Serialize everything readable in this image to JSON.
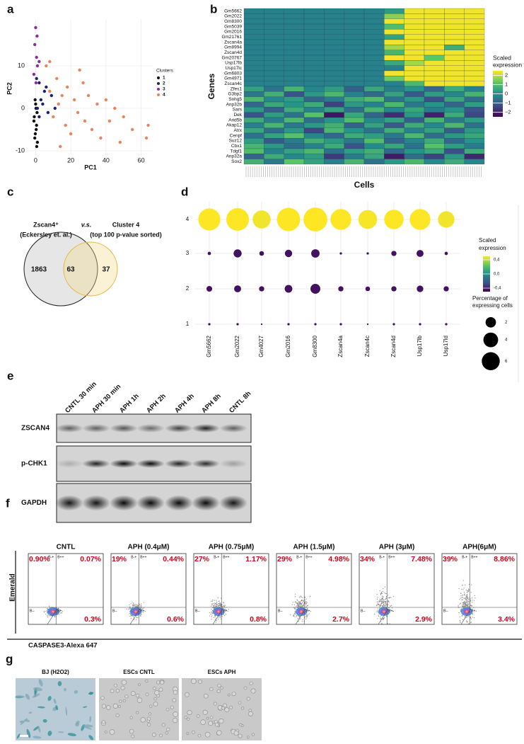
{
  "panel_labels": [
    "a",
    "b",
    "c",
    "d",
    "e",
    "f",
    "g"
  ],
  "chart_data": [
    {
      "type": "scatter",
      "xlabel": "PC1",
      "ylabel": "PC2",
      "legend_title": "Clusters",
      "xlim": [
        -5,
        67
      ],
      "ylim": [
        -11,
        21
      ],
      "xticks": [
        0,
        20,
        40,
        60
      ],
      "yticks": [
        -10,
        0,
        10
      ],
      "grid": true,
      "series": [
        {
          "name": "1",
          "color": "#111111",
          "x": [
            -0.5,
            0.3,
            -1,
            0.8,
            0,
            -0.2,
            0.5,
            -0.8,
            0.2,
            1,
            -0.3,
            0.6
          ],
          "values": [
            -7,
            -5,
            -3,
            -1,
            1,
            -6,
            -4,
            -2,
            0,
            -8,
            2,
            -9
          ]
        },
        {
          "name": "2",
          "color": "#1b1f78",
          "x": [
            1,
            3,
            5,
            2,
            7,
            4,
            9,
            0.5,
            6,
            11,
            2
          ],
          "values": [
            0,
            2,
            4,
            6,
            -1,
            1,
            3,
            7,
            5,
            0,
            -2
          ]
        },
        {
          "name": "3",
          "color": "#8e2c9e",
          "x": [
            0,
            -0.5,
            0.5,
            1,
            -1,
            0.2,
            2,
            0.8
          ],
          "values": [
            19,
            15,
            12,
            10,
            8,
            6,
            11,
            17
          ]
        },
        {
          "name": "4",
          "color": "#e9845c",
          "x": [
            6,
            8,
            10,
            12,
            13,
            15,
            17,
            18,
            20,
            22,
            24,
            25,
            28,
            30,
            32,
            35,
            37,
            40,
            42,
            45,
            48,
            50,
            55,
            63,
            64,
            8,
            14,
            27
          ],
          "values": [
            10,
            4,
            -2,
            7,
            1,
            3,
            -4,
            5,
            -6,
            2,
            -1,
            9,
            -3,
            3,
            -5,
            1,
            -7,
            2,
            -3,
            0,
            -8,
            -2,
            -5,
            -7,
            -4,
            11,
            -9,
            6
          ]
        }
      ]
    },
    {
      "type": "heatmap",
      "ylabel": "Genes",
      "xlabel": "Cells",
      "legend_title": [
        "Scaled",
        "expression"
      ],
      "rows": [
        "Gm5662",
        "Gm2022",
        "Gm8300",
        "Gm5039",
        "Gm2016",
        "Gm21761",
        "Zscan4a",
        "Gm8994",
        "Zscan4d",
        "Gm20767",
        "Usp17lb",
        "Usp17lc",
        "Gm6803",
        "Gm4971",
        "Zscan4c",
        "Zfes1",
        "G3bp2",
        "Snhg5",
        "Anp32b",
        "Sars",
        "Dek",
        "Arid5b",
        "Akap12",
        "Atrx",
        "Cenpf",
        "Suz12",
        "Cbx1",
        "Tdgf1",
        "Anp32a",
        "Sox2"
      ],
      "clim": [
        -2.5,
        2.5
      ],
      "cticks": [
        2,
        1,
        0,
        {
          "value": -1,
          "label": "−1"
        },
        {
          "value": -2,
          "label": "−2"
        }
      ],
      "values": [
        [
          -0.3,
          -0.3,
          -0.3,
          -0.3,
          -0.3,
          -0.3,
          -0.3,
          0.2,
          2.4,
          2.4,
          2.4,
          2.4
        ],
        [
          -0.3,
          -0.3,
          -0.3,
          -0.3,
          -0.3,
          -0.3,
          -0.3,
          1.6,
          2.4,
          2.4,
          2.4,
          2.4
        ],
        [
          -0.3,
          -0.3,
          -0.3,
          -0.3,
          -0.3,
          -0.3,
          -0.3,
          2.4,
          2.4,
          2.4,
          2.4,
          2.4
        ],
        [
          -0.3,
          -0.3,
          -0.3,
          -0.3,
          -0.3,
          -0.3,
          -0.3,
          1.0,
          2.4,
          2.4,
          2.4,
          2.4
        ],
        [
          -0.3,
          -0.3,
          -0.3,
          -0.3,
          -0.3,
          -0.3,
          -0.3,
          2.4,
          2.4,
          2.4,
          2.4,
          2.4
        ],
        [
          -0.3,
          -0.3,
          -0.3,
          -0.3,
          -0.3,
          -0.3,
          -0.3,
          0.4,
          2.4,
          2.4,
          2.4,
          2.4
        ],
        [
          -0.3,
          -0.3,
          -0.3,
          -0.3,
          -0.3,
          -0.3,
          -0.3,
          2.4,
          2.4,
          2.4,
          2.4,
          2.4
        ],
        [
          -0.3,
          -0.3,
          -0.3,
          -0.3,
          -0.3,
          -0.3,
          -0.3,
          1.8,
          2.4,
          2.4,
          0.6,
          2.4
        ],
        [
          -0.3,
          -0.3,
          -0.3,
          -0.3,
          -0.3,
          -0.3,
          -0.3,
          0.8,
          2.4,
          2.4,
          2.4,
          2.4
        ],
        [
          -0.3,
          -0.3,
          -0.3,
          -0.3,
          -0.3,
          -0.3,
          -0.3,
          2.4,
          2.4,
          1.2,
          2.4,
          2.4
        ],
        [
          -0.3,
          -0.3,
          -0.3,
          -0.3,
          -0.3,
          -0.3,
          -0.3,
          0.5,
          1.8,
          2.4,
          2.4,
          2.4
        ],
        [
          -0.3,
          -0.3,
          -0.3,
          -0.3,
          -0.3,
          -0.3,
          -0.3,
          -0.3,
          2.4,
          2.4,
          2.4,
          2.4
        ],
        [
          -0.3,
          -0.3,
          -0.3,
          -0.3,
          -0.3,
          -0.3,
          -0.3,
          2.4,
          2.4,
          2.4,
          2.4,
          2.4
        ],
        [
          -0.3,
          -0.3,
          -0.3,
          -0.3,
          -0.3,
          -0.3,
          -0.3,
          1.4,
          2.4,
          2.4,
          2.4,
          2.4
        ],
        [
          -0.3,
          -0.3,
          -0.3,
          -0.3,
          -0.3,
          -0.3,
          -0.3,
          -0.3,
          0.9,
          2.4,
          2.4,
          2.4
        ],
        [
          0.4,
          -0.6,
          0.8,
          -0.2,
          0.3,
          -1.0,
          0.5,
          -0.4,
          0.1,
          -0.8,
          0.6,
          -0.3
        ],
        [
          -0.5,
          0.7,
          -1.2,
          0.2,
          0.9,
          -0.3,
          -0.8,
          0.4,
          -1.1,
          0.3,
          -0.2,
          0.8
        ],
        [
          0.9,
          -0.2,
          0.3,
          -0.9,
          -0.4,
          0.6,
          1.0,
          -0.6,
          0.2,
          -1.3,
          0.5,
          -0.7
        ],
        [
          -0.8,
          0.5,
          0.1,
          0.6,
          -1.5,
          0.2,
          -0.3,
          0.9,
          -0.5,
          0.1,
          -0.9,
          0.3
        ],
        [
          0.2,
          -1.0,
          0.6,
          -0.3,
          0.4,
          -0.7,
          0.8,
          -0.2,
          0.5,
          -0.4,
          0.1,
          -1.2
        ],
        [
          -1.2,
          0.3,
          -0.6,
          1.1,
          -2.2,
          0.5,
          -0.9,
          -1.8,
          0.2,
          -2.0,
          0.6,
          -1.4
        ],
        [
          0.6,
          -0.4,
          0.9,
          -0.7,
          0.1,
          1.0,
          -0.2,
          0.4,
          -1.0,
          0.8,
          -0.5,
          0.3
        ],
        [
          -0.3,
          0.8,
          -0.5,
          0.2,
          0.7,
          -0.9,
          0.4,
          -1.1,
          0.6,
          -0.2,
          0.9,
          -0.6
        ],
        [
          0.5,
          -0.7,
          0.2,
          -1.4,
          0.9,
          0.1,
          -0.6,
          0.7,
          -0.3,
          0.4,
          -1.0,
          0.2
        ],
        [
          -0.6,
          0.4,
          1.1,
          -0.2,
          -0.8,
          0.6,
          0.3,
          -0.5,
          0.9,
          -0.7,
          0.2,
          0.5
        ],
        [
          0.3,
          -1.1,
          -0.4,
          0.7,
          0.2,
          -0.5,
          1.0,
          -0.9,
          -0.2,
          0.6,
          -0.8,
          0.1
        ],
        [
          0.8,
          0.2,
          -0.7,
          -0.3,
          0.6,
          -1.2,
          -0.1,
          0.5,
          -0.6,
          1.1,
          0.3,
          -0.4
        ],
        [
          1.0,
          -0.3,
          0.4,
          0.9,
          -0.6,
          0.3,
          0.7,
          -0.8,
          0.1,
          0.5,
          -1.3,
          0.6
        ],
        [
          -0.9,
          0.6,
          -0.2,
          0.3,
          -1.6,
          -0.4,
          0.5,
          -2.1,
          -0.7,
          -1.5,
          0.2,
          -1.9
        ],
        [
          0.7,
          -0.5,
          1.2,
          0.4,
          -0.3,
          0.8,
          -0.6,
          0.2,
          0.9,
          -0.1,
          0.6,
          -0.2
        ]
      ]
    },
    {
      "type": "dotplot",
      "categories": [
        "Gm5662",
        "Gm2022",
        "Gm4027",
        "Gm2016",
        "Gm8300",
        "Zscan4a",
        "Zscan4c",
        "Zscan4d",
        "Usp17lb",
        "Usp17ld"
      ],
      "rows": [
        "4",
        "3",
        "2",
        "1"
      ],
      "color_legend_title": [
        "Scaled",
        "expression"
      ],
      "clim": [
        -0.5,
        0.5
      ],
      "cticks": [
        {
          "value": 0.4,
          "label": "0,4"
        },
        {
          "value": 0,
          "label": "0,0"
        },
        {
          "value": -0.4,
          "label": "-0,4"
        }
      ],
      "size_legend_title": [
        "Percentage of",
        "expressing  cells"
      ],
      "size_ticks": [
        2,
        4,
        6
      ],
      "size_values": [
        [
          9,
          9.5,
          6,
          10,
          10.5,
          8,
          6.5,
          7,
          8,
          5
        ],
        [
          0.2,
          1.2,
          0.4,
          1,
          1.3,
          0.1,
          0.1,
          0.5,
          0.9,
          0.2
        ],
        [
          0.6,
          0.9,
          0.5,
          1.1,
          1.8,
          0.5,
          0.4,
          0.5,
          0.8,
          0.5
        ],
        [
          0.1,
          0.1,
          0.05,
          0.1,
          0.1,
          0.1,
          0.05,
          0.1,
          0.1,
          0.1
        ]
      ],
      "color_values": [
        [
          0.5,
          0.5,
          0.48,
          0.5,
          0.5,
          0.5,
          0.49,
          0.5,
          0.5,
          0.48
        ],
        [
          -0.45,
          -0.45,
          -0.45,
          -0.45,
          -0.45,
          -0.45,
          -0.45,
          -0.45,
          -0.45,
          -0.45
        ],
        [
          -0.45,
          -0.45,
          -0.45,
          -0.45,
          -0.45,
          -0.45,
          -0.45,
          -0.45,
          -0.45,
          -0.45
        ],
        [
          -0.45,
          -0.45,
          -0.45,
          -0.45,
          -0.45,
          -0.45,
          -0.45,
          -0.45,
          -0.45,
          -0.45
        ]
      ]
    }
  ],
  "venn": {
    "left_title": [
      "Zscan4⁺",
      "(Eckersley et. al.)"
    ],
    "versus": "v.s.",
    "right_title": [
      "Cluster 4",
      "(top 100 p-value sorted)"
    ],
    "left_only": 1863,
    "overlap": 63,
    "right_only": 37
  },
  "western_blot": {
    "lanes": [
      "CNTL 30 min",
      "APH 30 min",
      "APH 1h",
      "APH 2h",
      "APH 4h",
      "APH 8h",
      "CNTL 8h"
    ],
    "blots": [
      "ZSCAN4",
      "p-CHK1",
      "GAPDH"
    ]
  },
  "flow_cytometry": {
    "x_label": "CASPASE3-Alexa 647",
    "y_label": "Emerald",
    "quadrant_labels": [
      "B-+",
      "B++",
      "B--",
      "B+-"
    ],
    "plots": [
      {
        "title": "CNTL",
        "upper_left": {
          "value": 0.9,
          "label": "0.90%"
        },
        "upper_right": {
          "value": 0.07,
          "label": "0.07%"
        },
        "lower_right": {
          "value": 0.3,
          "label": "0.3%"
        }
      },
      {
        "title": "APH (0.4μM)",
        "upper_left": {
          "value": 19,
          "label": "19%"
        },
        "upper_right": {
          "value": 0.44,
          "label": "0.44%"
        },
        "lower_right": {
          "value": 0.6,
          "label": "0.6%"
        }
      },
      {
        "title": "APH (0.75μM)",
        "upper_left": {
          "value": 27,
          "label": "27%"
        },
        "upper_right": {
          "value": 1.17,
          "label": "1.17%"
        },
        "lower_right": {
          "value": 0.8,
          "label": "0.8%"
        }
      },
      {
        "title": "APH (1.5μM)",
        "upper_left": {
          "value": 29,
          "label": "29%"
        },
        "upper_right": {
          "value": 4.98,
          "label": "4.98%"
        },
        "lower_right": {
          "value": 2.7,
          "label": "2.7%"
        }
      },
      {
        "title": "APH (3μM)",
        "upper_left": {
          "value": 34,
          "label": "34%"
        },
        "upper_right": {
          "value": 7.48,
          "label": "7.48%"
        },
        "lower_right": {
          "value": 2.9,
          "label": "2.9%"
        }
      },
      {
        "title": "APH(6μM)",
        "upper_left": {
          "value": 39,
          "label": "39%"
        },
        "upper_right": {
          "value": 8.86,
          "label": "8.86%"
        },
        "lower_right": {
          "value": 3.4,
          "label": "3.4%"
        }
      }
    ]
  },
  "microscopy": {
    "images": [
      "BJ (H2O2)",
      "ESCs CNTL",
      "ESCs APH"
    ]
  }
}
